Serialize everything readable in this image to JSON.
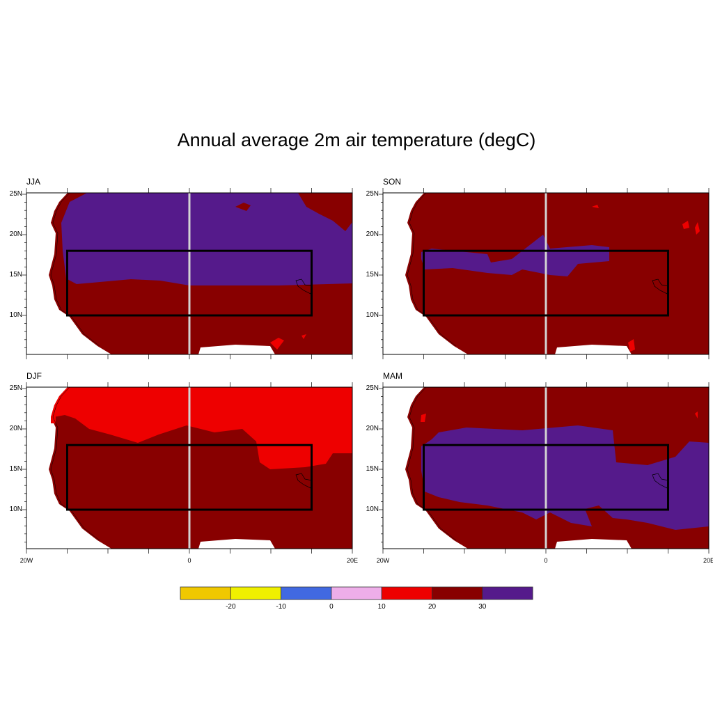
{
  "chart_data": {
    "type": "heatmap",
    "title": "Annual average 2m air temperature (degC)",
    "lon_range": [
      -20,
      20
    ],
    "lat_range": [
      5,
      25
    ],
    "lat_ticks": [
      {
        "v": 25,
        "label": "25N"
      },
      {
        "v": 20,
        "label": "20N"
      },
      {
        "v": 15,
        "label": "15N"
      },
      {
        "v": 10,
        "label": "10N"
      }
    ],
    "lon_ticks": [
      {
        "v": -20,
        "label": "20W"
      },
      {
        "v": 0,
        "label": "0"
      },
      {
        "v": 20,
        "label": "20E"
      }
    ],
    "box_region": {
      "lon": [
        -15,
        15
      ],
      "lat": [
        10,
        18
      ]
    },
    "panels": [
      {
        "label": "JJA",
        "dominant": "30+ over Sahara north of ~14N, 20-30 south"
      },
      {
        "label": "SON",
        "dominant": "20-30 most areas, 30+ patch near 15-17N"
      },
      {
        "label": "DJF",
        "dominant": "10-20 north of ~18N, 20-30 south"
      },
      {
        "label": "MAM",
        "dominant": "30+ band 11-19N, 20-30 elsewhere"
      }
    ],
    "colorbar": {
      "levels": [
        "-20",
        "-10",
        "0",
        "10",
        "20",
        "30"
      ],
      "colors": [
        "#f0c800",
        "#f0f000",
        "#4169e1",
        "#eeaee9",
        "#ee0000",
        "#880000",
        "#551a8b"
      ]
    }
  }
}
